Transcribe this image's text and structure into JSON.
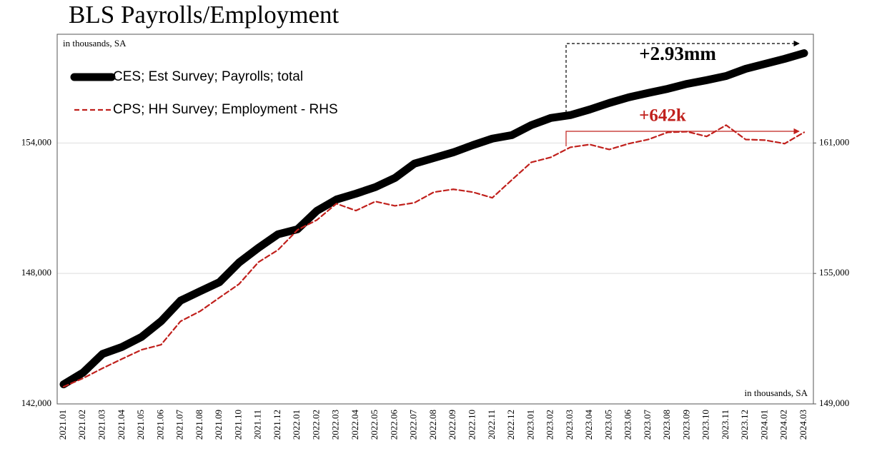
{
  "chart_data": {
    "type": "line",
    "title": "BLS Payrolls/Employment",
    "ylabel": "in thousands, SA",
    "y2label": "in thousands, SA",
    "annotations": [
      "+2.93mm",
      "+642k"
    ],
    "categories": [
      "2021.01",
      "2021.02",
      "2021.03",
      "2021.04",
      "2021.05",
      "2021.06",
      "2021.07",
      "2021.08",
      "2021.09",
      "2021.10",
      "2021.11",
      "2021.12",
      "2022.01",
      "2022.02",
      "2022.03",
      "2022.04",
      "2022.05",
      "2022.06",
      "2022.07",
      "2022.08",
      "2022.09",
      "2022.10",
      "2022.11",
      "2022.12",
      "2023.01",
      "2023.02",
      "2023.03",
      "2023.04",
      "2023.05",
      "2023.06",
      "2023.07",
      "2023.08",
      "2023.09",
      "2023.10",
      "2023.11",
      "2023.12",
      "2024.01",
      "2024.02",
      "2024.03"
    ],
    "series": [
      {
        "name": "CES; Est Survey; Payrolls; total",
        "color": "#000000",
        "axis": "y",
        "values": [
          142900,
          143440,
          144300,
          144620,
          145080,
          145800,
          146750,
          147180,
          147600,
          148500,
          149180,
          149800,
          150030,
          150880,
          151400,
          151670,
          151970,
          152390,
          153050,
          153310,
          153570,
          153900,
          154200,
          154360,
          154820,
          155150,
          155280,
          155540,
          155840,
          156100,
          156300,
          156490,
          156720,
          156890,
          157080,
          157410,
          157640,
          157870,
          158130
        ]
      },
      {
        "name": "CPS; HH Survey; Employment - RHS",
        "color": "#c0201c",
        "axis": "y2",
        "values": [
          149790,
          150180,
          150640,
          151070,
          151490,
          151720,
          152800,
          153260,
          153890,
          154510,
          155520,
          156080,
          157000,
          157460,
          158210,
          157890,
          158310,
          158110,
          158250,
          158740,
          158870,
          158740,
          158480,
          159300,
          160110,
          160340,
          160800,
          160930,
          160700,
          160970,
          161160,
          161490,
          161520,
          161300,
          161820,
          161160,
          161130,
          160970,
          161490
        ]
      }
    ],
    "ylim": [
      142000,
      159000
    ],
    "yticks": [
      {
        "value": 142000,
        "label": "142,000"
      },
      {
        "value": 148000,
        "label": "148,000"
      },
      {
        "value": 154000,
        "label": "154,000"
      }
    ],
    "y2lim": [
      149000,
      166000
    ],
    "y2ticks": [
      {
        "value": 149000,
        "label": "149,000"
      },
      {
        "value": 155000,
        "label": "155,000"
      },
      {
        "value": 161000,
        "label": "161,000"
      }
    ],
    "grid": true,
    "legend": "upper left"
  }
}
